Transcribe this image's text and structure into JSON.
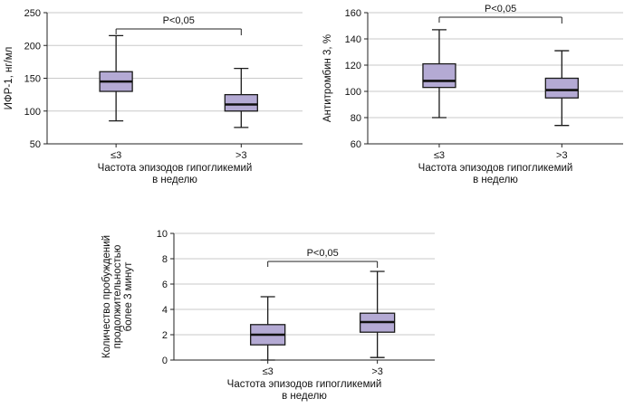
{
  "colors": {
    "box_fill": "#b4aad4",
    "box_stroke": "#1a1a1a",
    "median_stroke": "#111111",
    "grid": "#c9c9c9",
    "axis": "#222222",
    "text": "#111111"
  },
  "chart_data": [
    {
      "type": "box",
      "title": "",
      "ylabel": "ИФР-1, нг/мл",
      "ylabel_lines": [
        "ИФР-1, нг/мл"
      ],
      "xlabel_lines": [
        "Частота эпизодов гипогликемий",
        "в неделю"
      ],
      "categories": [
        "≤3",
        ">3"
      ],
      "ylim": [
        50,
        250
      ],
      "yticks": [
        50,
        100,
        150,
        200,
        250
      ],
      "grid": true,
      "p_annotation": "P<0,05",
      "series": [
        {
          "category": "≤3",
          "min": 85,
          "q1": 130,
          "median": 145,
          "q3": 160,
          "max": 215
        },
        {
          "category": ">3",
          "min": 75,
          "q1": 100,
          "median": 110,
          "q3": 125,
          "max": 165
        }
      ]
    },
    {
      "type": "box",
      "title": "",
      "ylabel": "Антитромбин 3, %",
      "ylabel_lines": [
        "Антитромбин 3, %"
      ],
      "xlabel_lines": [
        "Частота эпизодов гипогликемий",
        "в неделю"
      ],
      "categories": [
        "≤3",
        ">3"
      ],
      "ylim": [
        60,
        160
      ],
      "yticks": [
        60,
        80,
        100,
        120,
        140,
        160
      ],
      "grid": true,
      "p_annotation": "P<0,05",
      "series": [
        {
          "category": "≤3",
          "min": 80,
          "q1": 103,
          "median": 108,
          "q3": 121,
          "max": 147
        },
        {
          "category": ">3",
          "min": 74,
          "q1": 95,
          "median": 101,
          "q3": 110,
          "max": 131
        }
      ]
    },
    {
      "type": "box",
      "title": "",
      "ylabel": "Количество пробуждений продолжительностью более 3 минут",
      "ylabel_lines": [
        "Количество пробуждений",
        "продолжительностью",
        "более 3 минут"
      ],
      "xlabel_lines": [
        "Частота эпизодов гипогликемий",
        "в неделю"
      ],
      "categories": [
        "≤3",
        ">3"
      ],
      "ylim": [
        0,
        10
      ],
      "yticks": [
        0,
        2,
        4,
        6,
        8,
        10
      ],
      "grid": true,
      "p_annotation": "P<0,05",
      "series": [
        {
          "category": "≤3",
          "min": 0,
          "q1": 1.2,
          "median": 2,
          "q3": 2.8,
          "max": 5
        },
        {
          "category": ">3",
          "min": 0.2,
          "q1": 2.2,
          "median": 3,
          "q3": 3.7,
          "max": 7
        }
      ]
    }
  ]
}
